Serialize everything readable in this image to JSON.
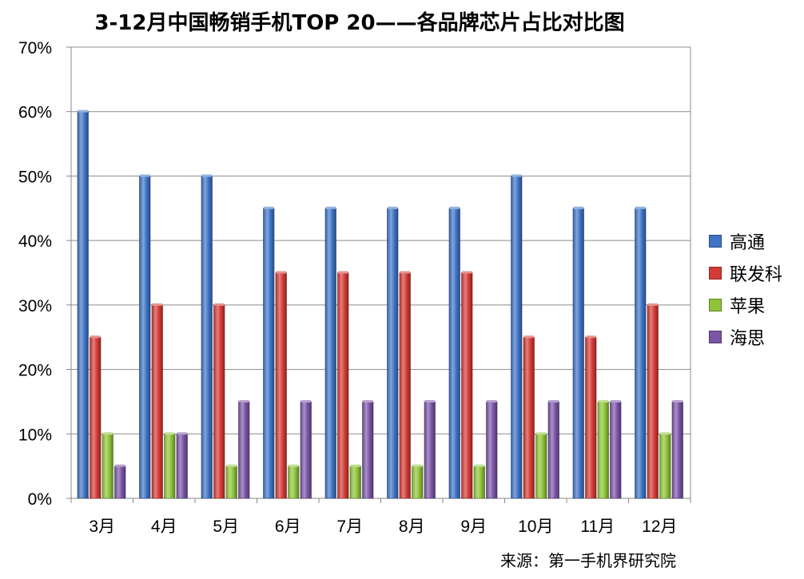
{
  "chart_data": {
    "type": "bar",
    "title": "3-12月中国畅销手机TOP 20——各品牌芯片占比对比图",
    "xlabel": "",
    "ylabel": "",
    "ylim": [
      0,
      70
    ],
    "ytick_step": 10,
    "ytick_suffix": "%",
    "grid": true,
    "legend_position": "right",
    "categories": [
      "3月",
      "4月",
      "5月",
      "6月",
      "7月",
      "8月",
      "9月",
      "10月",
      "11月",
      "12月"
    ],
    "series": [
      {
        "name": "高通",
        "color": "#3f74c6",
        "values": [
          60,
          50,
          50,
          45,
          45,
          45,
          45,
          50,
          45,
          45
        ]
      },
      {
        "name": "联发科",
        "color": "#d43b35",
        "values": [
          25,
          30,
          30,
          35,
          35,
          35,
          35,
          25,
          25,
          30
        ]
      },
      {
        "name": "苹果",
        "color": "#8fc43a",
        "values": [
          10,
          10,
          5,
          5,
          5,
          5,
          5,
          10,
          15,
          10
        ]
      },
      {
        "name": "海思",
        "color": "#7b55a6",
        "values": [
          5,
          10,
          15,
          15,
          15,
          15,
          15,
          15,
          15,
          15
        ]
      }
    ]
  },
  "source": "来源：第一手机界研究院"
}
